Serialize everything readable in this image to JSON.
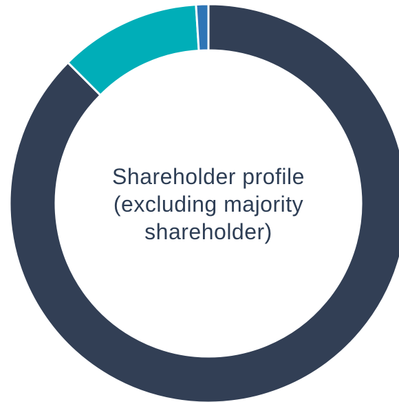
{
  "chart_data": {
    "type": "donut",
    "title": "Shareholder profile (excluding majority shareholder)",
    "values": [
      87.5,
      11.5,
      1
    ],
    "colors": [
      "#323f55",
      "#00aeb8",
      "#2e75b6"
    ]
  }
}
